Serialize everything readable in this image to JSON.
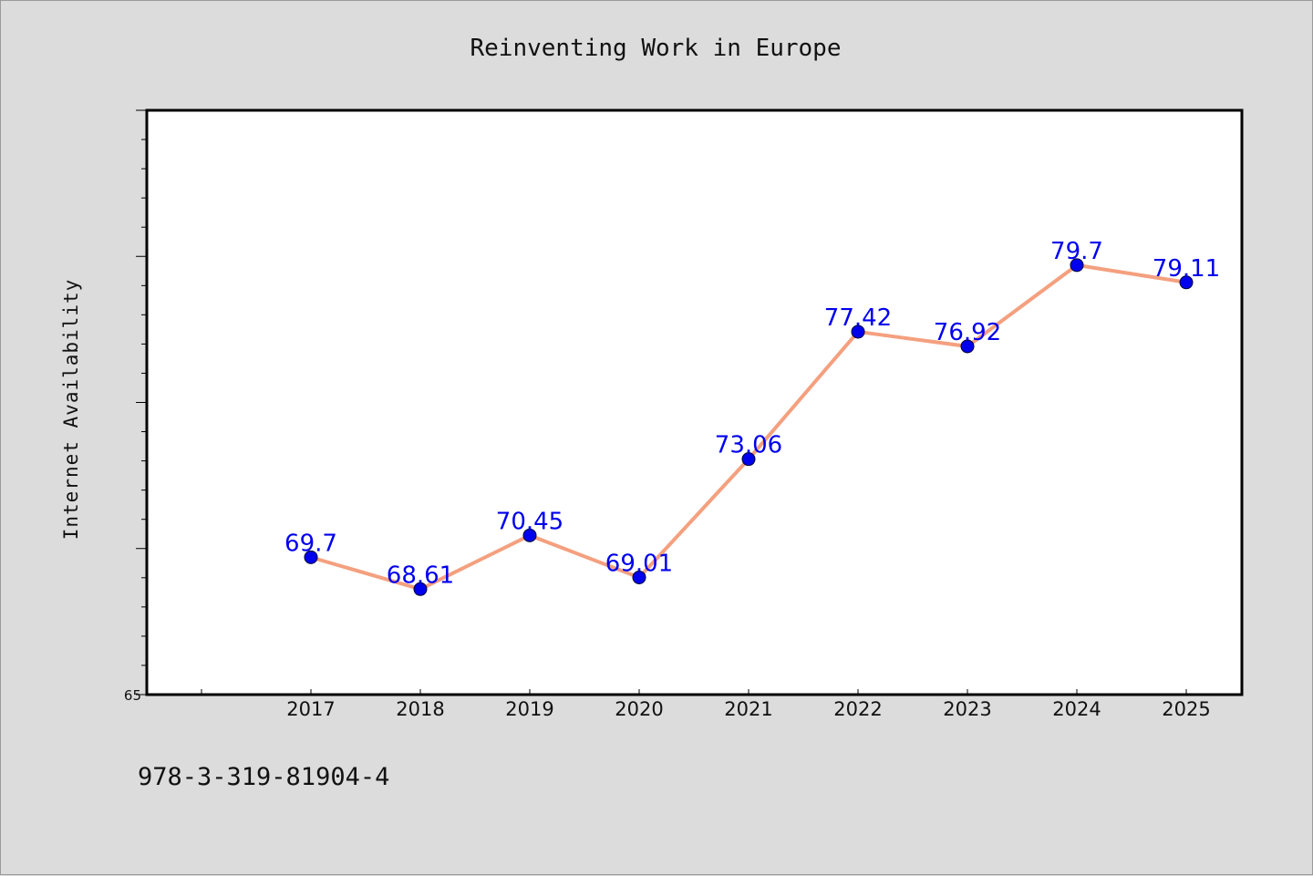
{
  "chart_data": {
    "type": "line",
    "title": "Reinventing Work in Europe",
    "xlabel": "",
    "ylabel": "Internet Availability",
    "categories": [
      "2017",
      "2018",
      "2019",
      "2020",
      "2021",
      "2022",
      "2023",
      "2024",
      "2025"
    ],
    "series": [
      {
        "values": [
          69.7,
          68.61,
          70.45,
          69.01,
          73.06,
          77.42,
          76.92,
          79.7,
          79.11
        ],
        "labels": [
          "69.7",
          "68.61",
          "70.45",
          "69.01",
          "73.06",
          "77.42",
          "76.92",
          "79.7",
          "79.11"
        ]
      }
    ],
    "ylim": [
      65,
      85
    ],
    "ytick_labels": [
      "65"
    ],
    "grid": false,
    "line_color": "#f4a07f",
    "marker_color": "#0000ee",
    "label_color": "#0000ee"
  },
  "footer": {
    "isbn": "978-3-319-81904-4"
  }
}
